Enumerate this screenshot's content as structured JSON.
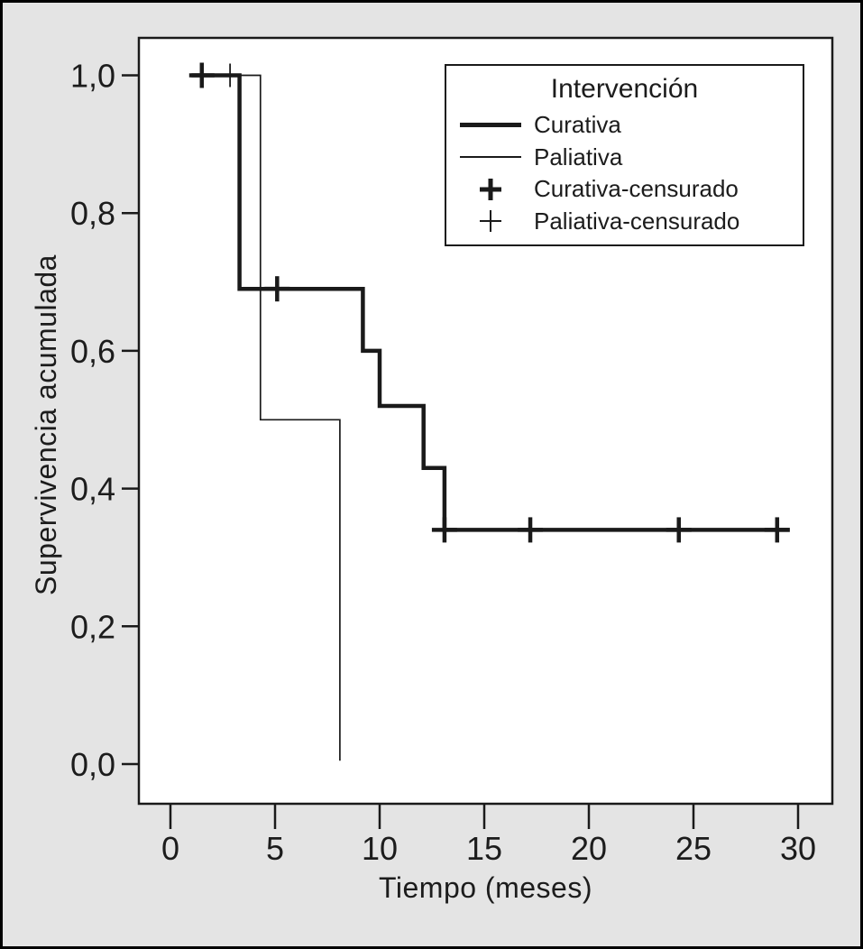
{
  "figure": {
    "background": "#e4e4e4",
    "plot_background": "#ffffff",
    "line_color": "#1a1a1a",
    "text_color": "#1c1c1c",
    "border_color": "#000000"
  },
  "chart_data": {
    "type": "line",
    "subtype": "kaplan_meier_step_survival",
    "title": "",
    "xlabel": "Tiempo (meses)",
    "ylabel": "Supervivencia acumulada",
    "xlim": [
      -1.5,
      31.6
    ],
    "ylim": [
      -0.058,
      1.054
    ],
    "xticks": [
      0,
      5,
      10,
      15,
      20,
      25,
      30
    ],
    "xtick_labels": [
      "0",
      "5",
      "10",
      "15",
      "20",
      "25",
      "30"
    ],
    "yticks": [
      0.0,
      0.2,
      0.4,
      0.6,
      0.8,
      1.0
    ],
    "ytick_labels": [
      "0,0",
      "0,2",
      "0,4",
      "0,6",
      "0,8",
      "1,0"
    ],
    "grid": false,
    "legend": {
      "title": "Intervención",
      "position": "top-right",
      "entries": [
        {
          "label": "Curativa",
          "style": "thick-line"
        },
        {
          "label": "Paliativa",
          "style": "thin-line"
        },
        {
          "label": "Curativa-censurado",
          "style": "thick-plus"
        },
        {
          "label": "Paliativa-censurado",
          "style": "thin-plus"
        }
      ]
    },
    "series": [
      {
        "name": "Curativa",
        "style": "thick-step",
        "path": [
          [
            1.0,
            1.0
          ],
          [
            3.3,
            1.0
          ],
          [
            3.3,
            0.69
          ],
          [
            9.2,
            0.69
          ],
          [
            9.2,
            0.6
          ],
          [
            10.0,
            0.6
          ],
          [
            10.0,
            0.52
          ],
          [
            12.1,
            0.52
          ],
          [
            12.1,
            0.43
          ],
          [
            13.1,
            0.43
          ],
          [
            13.1,
            0.34
          ],
          [
            29.6,
            0.34
          ]
        ]
      },
      {
        "name": "Paliativa",
        "style": "thin-step",
        "path": [
          [
            1.0,
            1.0
          ],
          [
            4.3,
            1.0
          ],
          [
            4.3,
            0.5
          ],
          [
            8.1,
            0.5
          ],
          [
            8.1,
            0.005
          ]
        ]
      }
    ],
    "censor_marks": [
      {
        "name": "Curativa-censurado",
        "style": "thick-plus",
        "points": [
          [
            1.5,
            1.0
          ],
          [
            5.1,
            0.69
          ],
          [
            13.1,
            0.34
          ],
          [
            17.2,
            0.34
          ],
          [
            24.3,
            0.34
          ],
          [
            29.0,
            0.34
          ]
        ]
      },
      {
        "name": "Paliativa-censurado",
        "style": "thin-plus",
        "points": [
          [
            2.85,
            1.0
          ]
        ]
      }
    ]
  }
}
